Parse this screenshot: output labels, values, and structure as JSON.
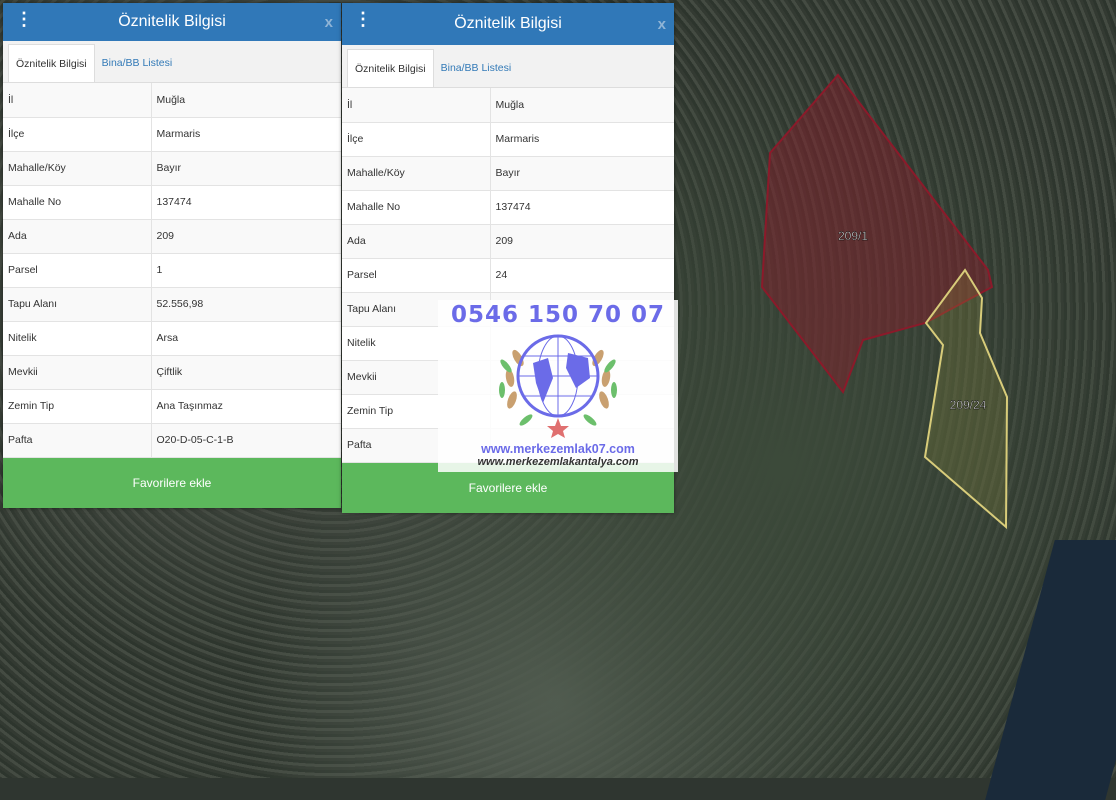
{
  "panels": [
    {
      "title": "Öznitelik Bilgisi",
      "close": "x",
      "tabs": [
        "Öznitelik Bilgisi",
        "Bina/BB Listesi"
      ],
      "rows": [
        [
          "İl",
          "Muğla"
        ],
        [
          "İlçe",
          "Marmaris"
        ],
        [
          "Mahalle/Köy",
          "Bayır"
        ],
        [
          "Mahalle No",
          "137474"
        ],
        [
          "Ada",
          "209"
        ],
        [
          "Parsel",
          "1"
        ],
        [
          "Tapu Alanı",
          "52.556,98"
        ],
        [
          "Nitelik",
          "Arsa"
        ],
        [
          "Mevkii",
          "Çiftlik"
        ],
        [
          "Zemin Tip",
          "Ana Taşınmaz"
        ],
        [
          "Pafta",
          "O20-D-05-C-1-B"
        ]
      ],
      "button": "Favorilere ekle"
    },
    {
      "title": "Öznitelik Bilgisi",
      "close": "x",
      "tabs": [
        "Öznitelik Bilgisi",
        "Bina/BB Listesi"
      ],
      "rows": [
        [
          "İl",
          "Muğla"
        ],
        [
          "İlçe",
          "Marmaris"
        ],
        [
          "Mahalle/Köy",
          "Bayır"
        ],
        [
          "Mahalle No",
          "137474"
        ],
        [
          "Ada",
          "209"
        ],
        [
          "Parsel",
          "24"
        ],
        [
          "Tapu Alanı",
          ""
        ],
        [
          "Nitelik",
          ""
        ],
        [
          "Mevkii",
          ""
        ],
        [
          "Zemin Tip",
          ""
        ],
        [
          "Pafta",
          ""
        ]
      ],
      "button": "Favorilere ekle"
    }
  ],
  "map": {
    "parcels": [
      {
        "label": "209/1",
        "color": "#8b1a2a"
      },
      {
        "label": "209/24",
        "color": "#d8cc7a"
      }
    ]
  },
  "watermark": {
    "phone": "0546 150 70 07",
    "site1": "www.merkezemlak07.com",
    "site2": "www.merkezemlakantalya.com"
  }
}
